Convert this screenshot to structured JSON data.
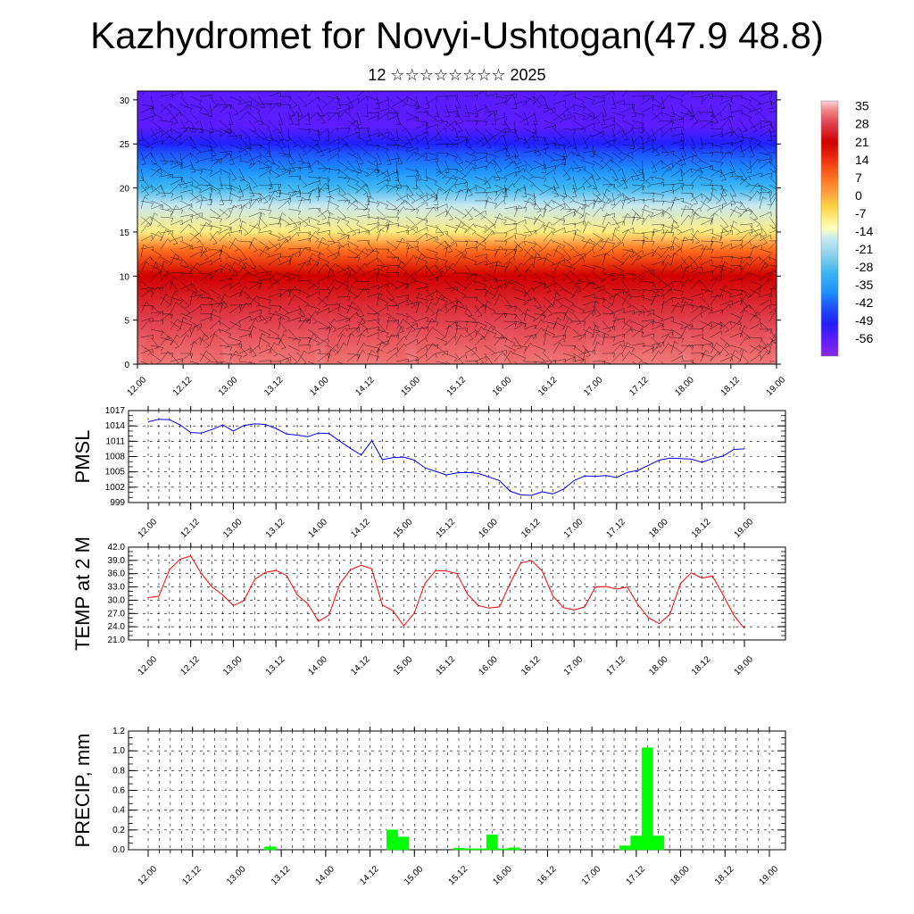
{
  "header": {
    "title": "Kazhydromet for Novyi-Ushtogan(47.9 48.8)",
    "subtitle": "12 ☆☆☆☆☆☆☆☆ 2025"
  },
  "chart_data": [
    {
      "type": "heatmap",
      "title": "",
      "xlabel": "",
      "ylabel": "",
      "x_ticks": [
        "12.00",
        "12.12",
        "13.00",
        "13.12",
        "14.00",
        "14.12",
        "15.00",
        "15.12",
        "16.00",
        "16.12",
        "17.00",
        "17.12",
        "18.00",
        "18.12",
        "19.00"
      ],
      "y_ticks": [
        0,
        5,
        10,
        15,
        20,
        25,
        30
      ],
      "ylim": [
        0,
        31
      ],
      "colorbar": {
        "ticks": [
          35,
          28,
          21,
          14,
          7,
          0,
          -7,
          -14,
          -21,
          -28,
          -35,
          -42,
          -49,
          -56
        ],
        "range": [
          -63,
          37
        ]
      },
      "surface_temperature_peaks": [
        {
          "x": "12.12",
          "value": 37
        },
        {
          "x": "13.12",
          "value": 35
        },
        {
          "x": "14.12",
          "value": 37
        },
        {
          "x": "15.12",
          "value": 36
        },
        {
          "x": "16.12",
          "value": 37
        },
        {
          "x": "17.12",
          "value": 33
        },
        {
          "x": "18.12",
          "value": 35
        }
      ],
      "vertical_profile": [
        {
          "height": 0,
          "value": 30
        },
        {
          "height": 5,
          "value": 23
        },
        {
          "height": 10,
          "value": 17
        },
        {
          "height": 13,
          "value": 2
        },
        {
          "height": 15,
          "value": -10
        },
        {
          "height": 18,
          "value": -22
        },
        {
          "height": 20,
          "value": -30
        },
        {
          "height": 22,
          "value": -38
        },
        {
          "height": 24,
          "value": -47
        },
        {
          "height": 25,
          "value": -52
        },
        {
          "height": 27,
          "value": -56
        },
        {
          "height": 31,
          "value": -60
        }
      ],
      "overlay": "wind barbs"
    },
    {
      "type": "line",
      "ylabel": "PMSL",
      "ylim": [
        999,
        1017
      ],
      "y_ticks": [
        999,
        1002,
        1005,
        1008,
        1011,
        1014,
        1017
      ],
      "x_ticks": [
        "12.00",
        "12.12",
        "13.00",
        "13.12",
        "14.00",
        "14.12",
        "15.00",
        "15.12",
        "16.00",
        "16.12",
        "17.00",
        "17.12",
        "18.00",
        "18.12",
        "19.00"
      ],
      "color": "#0000ff",
      "x": [
        0,
        3,
        6,
        9,
        12,
        15,
        18,
        21,
        24,
        27,
        30,
        33,
        36,
        39,
        42,
        45,
        48,
        51,
        54,
        57,
        60,
        63,
        66,
        69,
        72,
        75,
        78,
        81,
        84,
        87,
        90,
        93,
        96,
        99,
        102,
        105,
        108,
        111,
        114,
        117,
        120,
        123,
        126,
        129,
        132,
        135,
        138,
        141,
        144,
        147,
        150,
        153,
        156,
        159,
        162,
        165,
        168
      ],
      "values": [
        1014.8,
        1015.3,
        1015.2,
        1014.2,
        1012.7,
        1012.6,
        1013.3,
        1014.2,
        1013.0,
        1014.1,
        1014.4,
        1014.3,
        1013.5,
        1012.4,
        1012.2,
        1011.9,
        1012.6,
        1012.5,
        1011.0,
        1009.6,
        1008.3,
        1011.1,
        1007.4,
        1007.8,
        1007.9,
        1007.3,
        1005.8,
        1005.1,
        1004.4,
        1004.8,
        1004.9,
        1004.7,
        1004.0,
        1003.3,
        1001.2,
        1000.5,
        1000.4,
        1001.1,
        1000.7,
        1001.6,
        1003.3,
        1004.2,
        1004.1,
        1004.3,
        1003.9,
        1004.9,
        1005.3,
        1006.3,
        1007.3,
        1007.7,
        1007.6,
        1007.5,
        1006.9,
        1007.6,
        1008.1,
        1009.4,
        1009.5
      ]
    },
    {
      "type": "line",
      "ylabel": "TEMP at 2 M",
      "ylim": [
        21.0,
        42.0
      ],
      "y_ticks": [
        "21.0",
        "24.0",
        "27.0",
        "30.0",
        "33.0",
        "36.0",
        "39.0",
        "42.0"
      ],
      "x_ticks": [
        "12.00",
        "12.12",
        "13.00",
        "13.12",
        "14.00",
        "14.12",
        "15.00",
        "15.12",
        "16.00",
        "16.12",
        "17.00",
        "17.12",
        "18.00",
        "18.12",
        "19.00"
      ],
      "color": "#ff0000",
      "x": [
        0,
        3,
        6,
        9,
        12,
        15,
        18,
        21,
        24,
        27,
        30,
        33,
        36,
        39,
        42,
        45,
        48,
        51,
        54,
        57,
        60,
        63,
        66,
        69,
        72,
        75,
        78,
        81,
        84,
        87,
        90,
        93,
        96,
        99,
        102,
        105,
        108,
        111,
        114,
        117,
        120,
        123,
        126,
        129,
        132,
        135,
        138,
        141,
        144,
        147,
        150,
        153,
        156,
        159,
        162,
        165,
        168
      ],
      "values": [
        30.6,
        30.9,
        36.9,
        39.3,
        40.0,
        36.0,
        33.0,
        31.2,
        28.8,
        29.9,
        34.7,
        36.3,
        36.7,
        35.6,
        31.2,
        29.2,
        25.2,
        26.7,
        33.7,
        36.9,
        37.9,
        37.1,
        28.9,
        27.6,
        24.2,
        27.1,
        33.8,
        36.7,
        36.6,
        36.0,
        31.3,
        28.8,
        28.2,
        28.5,
        33.9,
        38.4,
        39.0,
        36.6,
        31.0,
        28.3,
        27.8,
        28.5,
        33.0,
        33.1,
        32.5,
        33.0,
        29.0,
        26.0,
        24.7,
        26.8,
        33.8,
        36.2,
        35.0,
        35.5,
        31.2,
        26.6,
        23.6
      ]
    },
    {
      "type": "bar",
      "ylabel": "PRECIP, mm",
      "ylim": [
        0.0,
        1.2
      ],
      "y_ticks": [
        "0.0",
        "0.2",
        "0.4",
        "0.6",
        "0.8",
        "1.0",
        "1.2"
      ],
      "x_ticks": [
        "12.00",
        "12.12",
        "13.00",
        "13.12",
        "14.00",
        "14.12",
        "15.00",
        "15.12",
        "16.00",
        "16.12",
        "17.00",
        "17.12",
        "18.00",
        "18.12",
        "19.00"
      ],
      "color": "#00ff00",
      "bar_width_hours": 3,
      "x": [
        33,
        66,
        69,
        84,
        87,
        90,
        93,
        96,
        99,
        129,
        132,
        135,
        138
      ],
      "values": [
        0.03,
        0.2,
        0.13,
        0.015,
        0.01,
        0.01,
        0.15,
        0.01,
        0.02,
        0.04,
        0.14,
        1.03,
        0.14
      ]
    }
  ]
}
